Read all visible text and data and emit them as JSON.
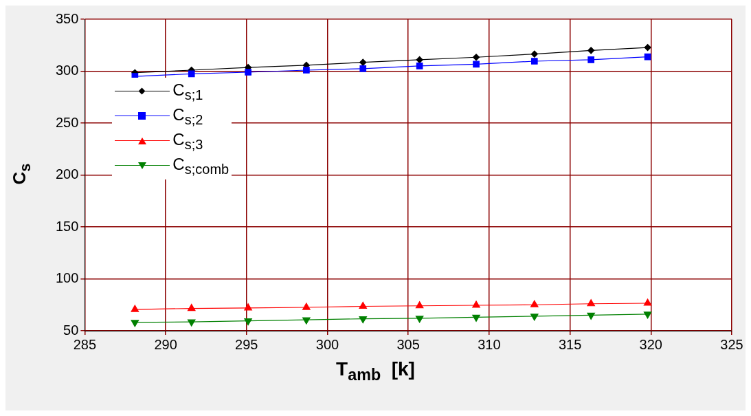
{
  "chart_data": {
    "type": "line",
    "xlabel": "T$_{amb}$  [k]",
    "ylabel": "C$_{s}$",
    "x": [
      288.1,
      291.6,
      295.1,
      298.7,
      302.2,
      305.7,
      309.2,
      312.8,
      316.3,
      319.8
    ],
    "series": [
      {
        "name": "C$_{s;1}$",
        "color": "#000000",
        "marker": "diamond",
        "values": [
          298.5,
          301,
          303.5,
          305.7,
          308.5,
          311,
          313.4,
          316.5,
          320,
          322.8
        ]
      },
      {
        "name": "C$_{s;2}$",
        "color": "#0000ff",
        "marker": "square",
        "values": [
          295,
          297.4,
          299,
          301,
          302.4,
          305,
          306.7,
          309.6,
          311,
          313.8
        ]
      },
      {
        "name": "C$_{s;3}$",
        "color": "#ff0000",
        "marker": "triangle",
        "values": [
          70.5,
          71.5,
          72,
          72.5,
          73.5,
          74,
          74.5,
          75,
          76,
          76.5
        ]
      },
      {
        "name": "C$_{s;comb}$",
        "color": "#008000",
        "marker": "triangle-down",
        "values": [
          58,
          58.5,
          59.5,
          60.5,
          61.5,
          62,
          63,
          64,
          65,
          66
        ]
      }
    ],
    "xlim": [
      285,
      325
    ],
    "xticks": [
      285,
      290,
      295,
      300,
      305,
      310,
      315,
      320,
      325
    ],
    "ylim": [
      50,
      350
    ],
    "yticks": [
      50,
      100,
      150,
      200,
      250,
      300,
      350
    ],
    "grid": true,
    "legend": "top left"
  }
}
